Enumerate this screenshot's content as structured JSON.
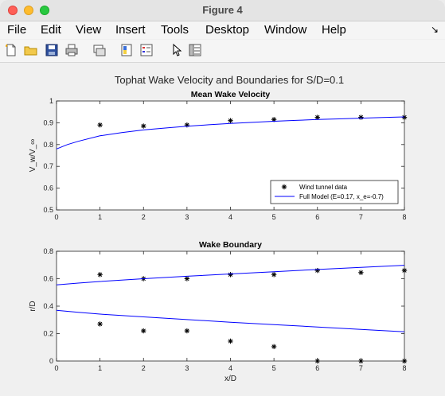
{
  "window": {
    "title": "Figure 4"
  },
  "menu": [
    "File",
    "Edit",
    "View",
    "Insert",
    "Tools",
    "Desktop",
    "Window",
    "Help"
  ],
  "menu_arrow": "↘",
  "toolbar": [
    "new-figure-icon",
    "open-file-icon",
    "save-icon",
    "print-icon",
    "link-icon",
    "colorbar-icon",
    "legend-icon",
    "pointer-icon",
    "property-inspector-icon"
  ],
  "colors": {
    "line": "#0000ff",
    "marker": "#000000"
  },
  "figure": {
    "suptitle": "Tophat Wake Velocity and Boundaries for S/D=0.1"
  },
  "chart_data": [
    {
      "type": "scatter",
      "title": "Mean Wake Velocity",
      "xlabel": "",
      "ylabel": "V_w/V_∞",
      "xlim": [
        0,
        8
      ],
      "ylim": [
        0.5,
        1
      ],
      "xticks": [
        "0",
        "1",
        "2",
        "3",
        "4",
        "5",
        "6",
        "7",
        "8"
      ],
      "yticks": [
        "0.5",
        "0.6",
        "0.7",
        "0.8",
        "0.9",
        "1"
      ],
      "legend_position": "bottom-right",
      "series": [
        {
          "name": "Wind tunnel data",
          "kind": "markers",
          "x": [
            1,
            2,
            3,
            4,
            5,
            6,
            7,
            8
          ],
          "y": [
            0.89,
            0.885,
            0.89,
            0.91,
            0.915,
            0.925,
            0.925,
            0.925
          ]
        },
        {
          "name": "Full Model (E=0.17, x_e=-0.7)",
          "kind": "line",
          "x": [
            0,
            0.25,
            0.5,
            1,
            1.5,
            2,
            2.5,
            3,
            3.5,
            4,
            4.5,
            5,
            5.5,
            6,
            6.5,
            7,
            7.5,
            8
          ],
          "y": [
            0.78,
            0.8,
            0.815,
            0.84,
            0.855,
            0.867,
            0.876,
            0.884,
            0.891,
            0.897,
            0.902,
            0.907,
            0.911,
            0.915,
            0.918,
            0.921,
            0.924,
            0.927
          ]
        }
      ]
    },
    {
      "type": "scatter",
      "title": "Wake Boundary",
      "xlabel": "x/D",
      "ylabel": "r/D",
      "xlim": [
        0,
        8
      ],
      "ylim": [
        0,
        0.8
      ],
      "xticks": [
        "0",
        "1",
        "2",
        "3",
        "4",
        "5",
        "6",
        "7",
        "8"
      ],
      "yticks": [
        "0",
        "0.2",
        "0.4",
        "0.6",
        "0.8"
      ],
      "series": [
        {
          "kind": "markers",
          "x": [
            1,
            2,
            3,
            4,
            5,
            6,
            7,
            8
          ],
          "y": [
            0.63,
            0.6,
            0.6,
            0.63,
            0.63,
            0.66,
            0.645,
            0.66
          ]
        },
        {
          "kind": "markers",
          "x": [
            1,
            2,
            3,
            4,
            5,
            6,
            7,
            8
          ],
          "y": [
            0.27,
            0.22,
            0.22,
            0.145,
            0.105,
            0,
            0,
            0
          ]
        },
        {
          "kind": "line",
          "x": [
            0,
            0.5,
            1,
            2,
            3,
            4,
            5,
            6,
            7,
            8
          ],
          "y": [
            0.555,
            0.568,
            0.58,
            0.6,
            0.618,
            0.635,
            0.651,
            0.667,
            0.683,
            0.698
          ]
        },
        {
          "kind": "line",
          "x": [
            0,
            0.5,
            1,
            2,
            3,
            4,
            5,
            6,
            7,
            8
          ],
          "y": [
            0.37,
            0.355,
            0.342,
            0.322,
            0.302,
            0.283,
            0.265,
            0.248,
            0.23,
            0.213
          ]
        }
      ]
    }
  ]
}
